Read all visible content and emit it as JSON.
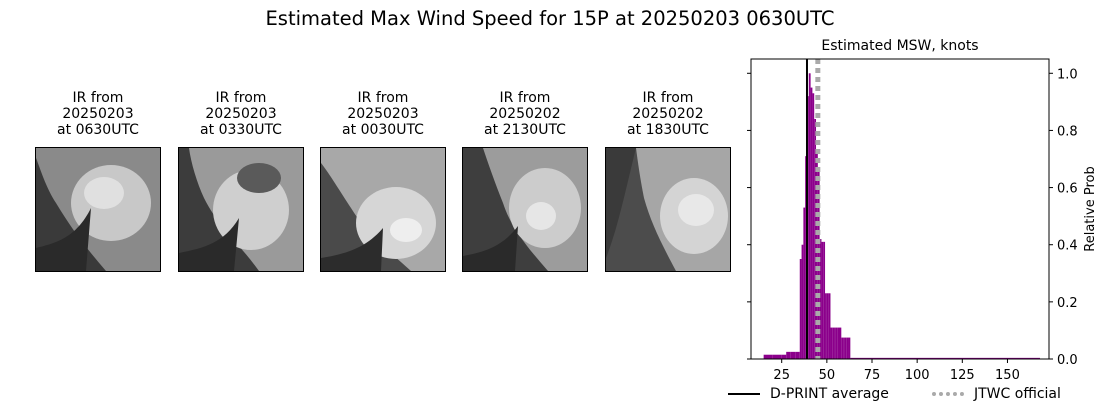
{
  "title": "Estimated Max Wind Speed for 15P at 20250203 0630UTC",
  "panels": [
    {
      "label": "IR from\n20250203\nat 0630UTC"
    },
    {
      "label": "IR from\n20250203\nat 0330UTC"
    },
    {
      "label": "IR from\n20250203\nat 0030UTC"
    },
    {
      "label": "IR from\n20250202\nat 2130UTC"
    },
    {
      "label": "IR from\n20250202\nat 1830UTC"
    }
  ],
  "chart_data": {
    "type": "bar",
    "title": "Estimated MSW, knots",
    "xlabel": "",
    "ylabel": "Relative Prob",
    "xlim": [
      8,
      173
    ],
    "ylim": [
      0,
      1.05
    ],
    "xticks": [
      25,
      50,
      75,
      100,
      125,
      150
    ],
    "yticks": [
      0.0,
      0.2,
      0.4,
      0.6,
      0.8,
      1.0
    ],
    "ytick_labels": [
      "0.0",
      "0.2",
      "0.4",
      "0.6",
      "0.8",
      "1.0"
    ],
    "bar_color": "#8b008b",
    "bins": [
      {
        "x0": 15,
        "x1": 20,
        "y": 0.015
      },
      {
        "x0": 20,
        "x1": 25,
        "y": 0.015
      },
      {
        "x0": 25,
        "x1": 27.5,
        "y": 0.015
      },
      {
        "x0": 27.5,
        "x1": 30,
        "y": 0.025
      },
      {
        "x0": 30,
        "x1": 32.5,
        "y": 0.025
      },
      {
        "x0": 32.5,
        "x1": 35,
        "y": 0.025
      },
      {
        "x0": 35,
        "x1": 36,
        "y": 0.35
      },
      {
        "x0": 36,
        "x1": 37,
        "y": 0.4
      },
      {
        "x0": 37,
        "x1": 38,
        "y": 0.53
      },
      {
        "x0": 38,
        "x1": 39,
        "y": 0.71
      },
      {
        "x0": 39,
        "x1": 40,
        "y": 0.92
      },
      {
        "x0": 40,
        "x1": 41,
        "y": 1.0
      },
      {
        "x0": 41,
        "x1": 42,
        "y": 0.95
      },
      {
        "x0": 42,
        "x1": 43,
        "y": 0.93
      },
      {
        "x0": 43,
        "x1": 44,
        "y": 0.84
      },
      {
        "x0": 44,
        "x1": 45,
        "y": 0.72
      },
      {
        "x0": 45,
        "x1": 46,
        "y": 0.67
      },
      {
        "x0": 46,
        "x1": 47,
        "y": 0.42
      },
      {
        "x0": 47,
        "x1": 48,
        "y": 0.41
      },
      {
        "x0": 48,
        "x1": 49,
        "y": 0.41
      },
      {
        "x0": 49,
        "x1": 50,
        "y": 0.23
      },
      {
        "x0": 50,
        "x1": 51,
        "y": 0.23
      },
      {
        "x0": 51,
        "x1": 52,
        "y": 0.23
      },
      {
        "x0": 52,
        "x1": 53,
        "y": 0.11
      },
      {
        "x0": 53,
        "x1": 54,
        "y": 0.11
      },
      {
        "x0": 54,
        "x1": 55,
        "y": 0.11
      },
      {
        "x0": 55,
        "x1": 56,
        "y": 0.11
      },
      {
        "x0": 56,
        "x1": 57,
        "y": 0.11
      },
      {
        "x0": 57,
        "x1": 58,
        "y": 0.11
      },
      {
        "x0": 58,
        "x1": 59,
        "y": 0.075
      },
      {
        "x0": 59,
        "x1": 60,
        "y": 0.075
      },
      {
        "x0": 60,
        "x1": 61,
        "y": 0.075
      },
      {
        "x0": 61,
        "x1": 62,
        "y": 0.075
      },
      {
        "x0": 62,
        "x1": 63,
        "y": 0.075
      },
      {
        "x0": 63,
        "x1": 168,
        "y": 0.004
      }
    ],
    "dprint_average": 39,
    "jtwc_official": 45,
    "legend": [
      {
        "label": "D-PRINT average",
        "color": "#000000",
        "style": "solid"
      },
      {
        "label": "JTWC official",
        "color": "#aaaaaa",
        "style": "dotted"
      }
    ]
  }
}
